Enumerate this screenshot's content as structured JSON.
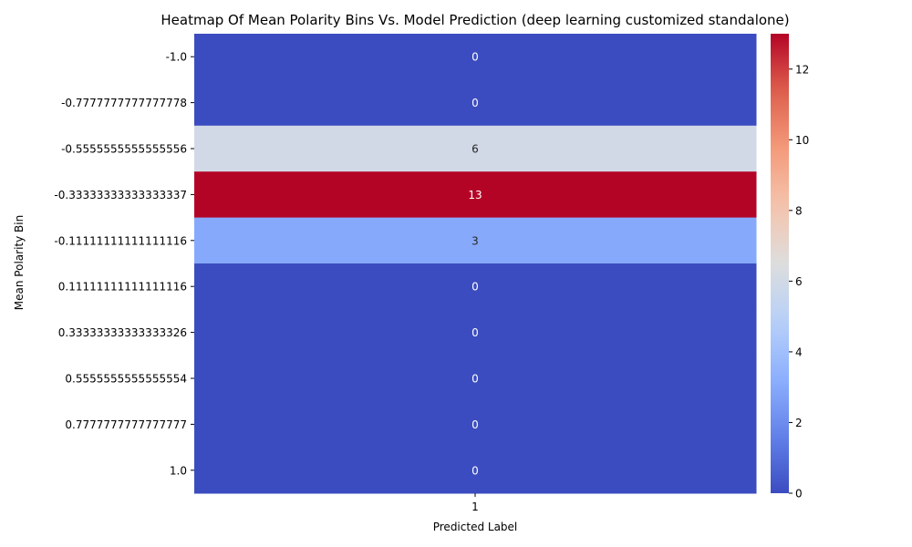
{
  "chart_data": {
    "type": "heatmap",
    "title": "Heatmap Of Mean Polarity Bins Vs. Model Prediction (deep learning customized standalone)",
    "xlabel": "Predicted Label",
    "ylabel": "Mean Polarity Bin",
    "x_categories": [
      "1"
    ],
    "y_categories": [
      "-1.0",
      "-0.7777777777777778",
      "-0.5555555555555556",
      "-0.33333333333333337",
      "-0.11111111111111116",
      "0.11111111111111116",
      "0.33333333333333326",
      "0.5555555555555554",
      "0.7777777777777777",
      "1.0"
    ],
    "values": [
      [
        0
      ],
      [
        0
      ],
      [
        6
      ],
      [
        13
      ],
      [
        3
      ],
      [
        0
      ],
      [
        0
      ],
      [
        0
      ],
      [
        0
      ],
      [
        0
      ]
    ],
    "annotations": true,
    "colormap": "coolwarm",
    "colorbar": {
      "vmin": 0,
      "vmax": 13,
      "ticks": [
        0,
        2,
        4,
        6,
        8,
        10,
        12
      ],
      "tick_labels": [
        "0",
        "2",
        "4",
        "6",
        "8",
        "10",
        "12"
      ]
    },
    "grid": false
  }
}
